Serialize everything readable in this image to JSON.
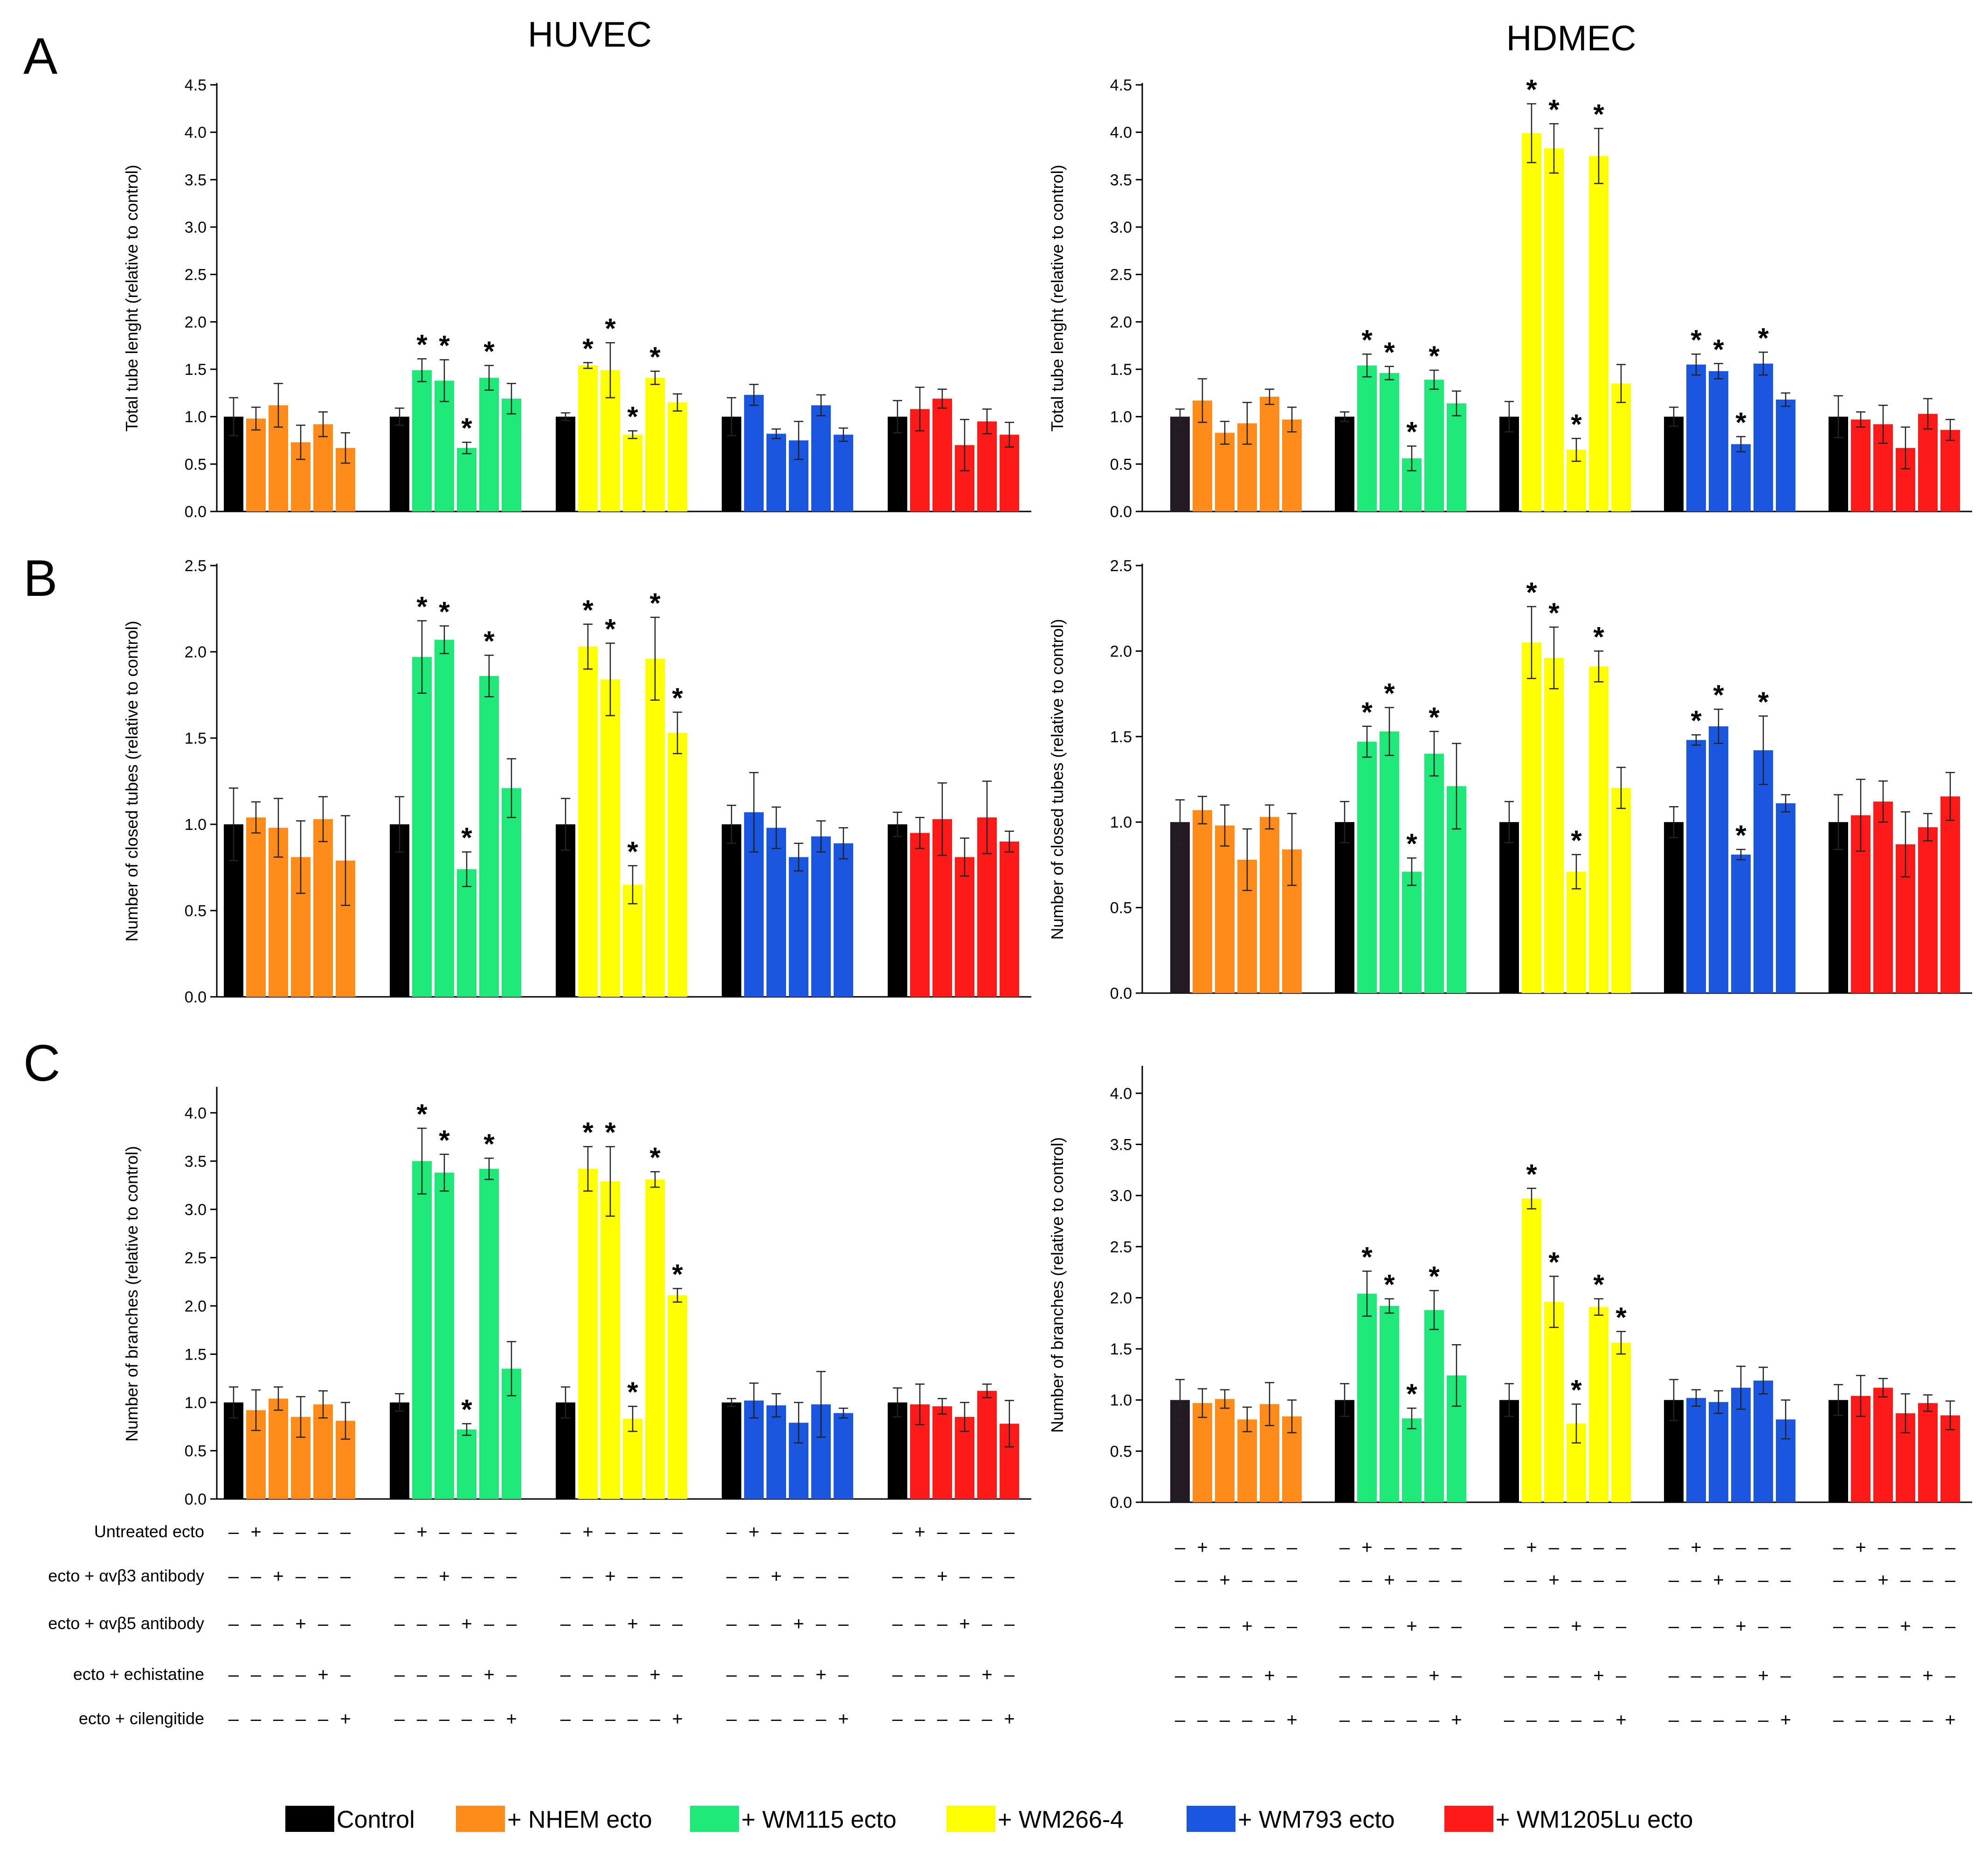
{
  "figure": {
    "column_titles": [
      "HUVEC",
      "HDMEC"
    ],
    "panel_letters": [
      "A",
      "B",
      "C"
    ],
    "condition_rows": [
      "Untreated ecto",
      "ecto + αvβ3 antibody",
      "ecto + αvβ5 antibody",
      "ecto + echistatine",
      "ecto + cilengitide"
    ],
    "legend": [
      {
        "label": "Control",
        "color": "#000000"
      },
      {
        "label": "+ NHEM ecto",
        "color": "#ff8c1a"
      },
      {
        "label": "+ WM115 ecto",
        "color": "#1ee876"
      },
      {
        "label": "+ WM266-4",
        "color": "#ffff00"
      },
      {
        "label": "+ WM793 ecto",
        "color": "#1a56e0"
      },
      {
        "label": "+ WM1205Lu ecto",
        "color": "#ff1a1a"
      }
    ],
    "group_colors": [
      "#ff8c1a",
      "#1ee876",
      "#ffff00",
      "#1a56e0",
      "#ff1a1a"
    ],
    "control_colors": [
      "#000000",
      "#231a23"
    ]
  },
  "chart_data": [
    {
      "panel": "A",
      "column": 0,
      "type": "bar",
      "ylabel": "Total tube lenght (relative to control)",
      "ylim": [
        0,
        4.5
      ],
      "yticks": [
        0.0,
        0.5,
        1.0,
        1.5,
        2.0,
        2.5,
        3.0,
        3.5,
        4.0,
        4.5
      ],
      "groups": [
        {
          "values": [
            1.0,
            0.98,
            1.12,
            0.73,
            0.92,
            0.67
          ],
          "errors": [
            0.2,
            0.12,
            0.23,
            0.18,
            0.13,
            0.16
          ],
          "stars": []
        },
        {
          "values": [
            1.0,
            1.49,
            1.38,
            0.67,
            1.41,
            1.19
          ],
          "errors": [
            0.09,
            0.12,
            0.22,
            0.06,
            0.13,
            0.16
          ],
          "stars": [
            1,
            2,
            3,
            4
          ]
        },
        {
          "values": [
            1.0,
            1.54,
            1.49,
            0.81,
            1.41,
            1.15
          ],
          "errors": [
            0.04,
            0.03,
            0.29,
            0.04,
            0.07,
            0.09
          ],
          "stars": [
            1,
            2,
            3,
            4
          ]
        },
        {
          "values": [
            1.0,
            1.23,
            0.82,
            0.75,
            1.12,
            0.81
          ],
          "errors": [
            0.2,
            0.11,
            0.05,
            0.2,
            0.11,
            0.07
          ],
          "stars": []
        },
        {
          "values": [
            1.0,
            1.08,
            1.19,
            0.7,
            0.95,
            0.81
          ],
          "errors": [
            0.17,
            0.23,
            0.1,
            0.27,
            0.13,
            0.13
          ],
          "stars": []
        }
      ]
    },
    {
      "panel": "A",
      "column": 1,
      "type": "bar",
      "ylabel": "Total tube lenght (relative to control)",
      "ylim": [
        0,
        4.5
      ],
      "yticks": [
        0.0,
        0.5,
        1.0,
        1.5,
        2.0,
        2.5,
        3.0,
        3.5,
        4.0,
        4.5
      ],
      "groups": [
        {
          "values": [
            1.0,
            1.17,
            0.83,
            0.93,
            1.21,
            0.97
          ],
          "errors": [
            0.08,
            0.23,
            0.12,
            0.22,
            0.08,
            0.13
          ],
          "stars": []
        },
        {
          "values": [
            1.0,
            1.54,
            1.46,
            0.56,
            1.39,
            1.14
          ],
          "errors": [
            0.05,
            0.12,
            0.07,
            0.13,
            0.1,
            0.13
          ],
          "stars": [
            1,
            2,
            3,
            4
          ]
        },
        {
          "values": [
            1.0,
            3.99,
            3.83,
            0.65,
            3.75,
            1.35
          ],
          "errors": [
            0.16,
            0.31,
            0.26,
            0.12,
            0.29,
            0.2
          ],
          "stars": [
            1,
            2,
            3,
            4
          ]
        },
        {
          "values": [
            1.0,
            1.55,
            1.48,
            0.71,
            1.56,
            1.18
          ],
          "errors": [
            0.1,
            0.11,
            0.08,
            0.08,
            0.12,
            0.07
          ],
          "stars": [
            1,
            2,
            3,
            4
          ]
        },
        {
          "values": [
            1.0,
            0.97,
            0.92,
            0.67,
            1.03,
            0.86
          ],
          "errors": [
            0.22,
            0.08,
            0.2,
            0.22,
            0.16,
            0.11
          ],
          "stars": []
        }
      ]
    },
    {
      "panel": "B",
      "column": 0,
      "type": "bar",
      "ylabel": "Number of closed tubes (relative to control)",
      "ylim": [
        0,
        2.5
      ],
      "yticks": [
        0.0,
        0.5,
        1.0,
        1.5,
        2.0,
        2.5
      ],
      "groups": [
        {
          "values": [
            1.0,
            1.04,
            0.98,
            0.81,
            1.03,
            0.79
          ],
          "errors": [
            0.21,
            0.09,
            0.17,
            0.21,
            0.13,
            0.26
          ],
          "stars": []
        },
        {
          "values": [
            1.0,
            1.97,
            2.07,
            0.74,
            1.86,
            1.21
          ],
          "errors": [
            0.16,
            0.21,
            0.08,
            0.1,
            0.12,
            0.17
          ],
          "stars": [
            1,
            2,
            3,
            4
          ]
        },
        {
          "values": [
            1.0,
            2.03,
            1.84,
            0.65,
            1.96,
            1.53
          ],
          "errors": [
            0.15,
            0.13,
            0.21,
            0.11,
            0.24,
            0.12
          ],
          "stars": [
            1,
            2,
            3,
            4,
            5
          ]
        },
        {
          "values": [
            1.0,
            1.07,
            0.98,
            0.81,
            0.93,
            0.89
          ],
          "errors": [
            0.11,
            0.23,
            0.12,
            0.08,
            0.09,
            0.09
          ],
          "stars": []
        },
        {
          "values": [
            1.0,
            0.95,
            1.03,
            0.81,
            1.04,
            0.9
          ],
          "errors": [
            0.07,
            0.09,
            0.21,
            0.11,
            0.21,
            0.06
          ],
          "stars": []
        }
      ]
    },
    {
      "panel": "B",
      "column": 1,
      "type": "bar",
      "ylabel": "Number of closed tubes (relative to control)",
      "ylim": [
        0,
        2.5
      ],
      "yticks": [
        0.0,
        0.5,
        1.0,
        1.5,
        2.0,
        2.5
      ],
      "groups": [
        {
          "values": [
            1.0,
            1.07,
            0.98,
            0.78,
            1.03,
            0.84
          ],
          "errors": [
            0.13,
            0.08,
            0.12,
            0.18,
            0.07,
            0.21
          ],
          "stars": []
        },
        {
          "values": [
            1.0,
            1.47,
            1.53,
            0.71,
            1.4,
            1.21
          ],
          "errors": [
            0.12,
            0.09,
            0.14,
            0.08,
            0.13,
            0.25
          ],
          "stars": [
            1,
            2,
            3,
            4
          ]
        },
        {
          "values": [
            1.0,
            2.05,
            1.96,
            0.71,
            1.91,
            1.2
          ],
          "errors": [
            0.12,
            0.21,
            0.18,
            0.1,
            0.09,
            0.12
          ],
          "stars": [
            1,
            2,
            3,
            4
          ]
        },
        {
          "values": [
            1.0,
            1.48,
            1.56,
            0.81,
            1.42,
            1.11
          ],
          "errors": [
            0.09,
            0.03,
            0.1,
            0.03,
            0.2,
            0.05
          ],
          "stars": [
            1,
            2,
            3,
            4
          ]
        },
        {
          "values": [
            1.0,
            1.04,
            1.12,
            0.87,
            0.97,
            1.15
          ],
          "errors": [
            0.16,
            0.21,
            0.12,
            0.19,
            0.08,
            0.14
          ],
          "stars": []
        }
      ]
    },
    {
      "panel": "C",
      "column": 0,
      "type": "bar",
      "ylabel": "Number of branches (relative to control)",
      "ylim": [
        0,
        4.25
      ],
      "yticks": [
        0.0,
        0.5,
        1.0,
        1.5,
        2.0,
        2.5,
        3.0,
        3.5,
        4.0
      ],
      "groups": [
        {
          "values": [
            1.0,
            0.92,
            1.04,
            0.85,
            0.98,
            0.81
          ],
          "errors": [
            0.16,
            0.21,
            0.12,
            0.21,
            0.14,
            0.19
          ],
          "stars": []
        },
        {
          "values": [
            1.0,
            3.5,
            3.38,
            0.72,
            3.42,
            1.35
          ],
          "errors": [
            0.09,
            0.34,
            0.19,
            0.06,
            0.11,
            0.28
          ],
          "stars": [
            1,
            2,
            3,
            4
          ]
        },
        {
          "values": [
            1.0,
            3.42,
            3.29,
            0.83,
            3.31,
            2.11
          ],
          "errors": [
            0.16,
            0.23,
            0.36,
            0.13,
            0.08,
            0.07
          ],
          "stars": [
            1,
            2,
            3,
            4,
            5
          ]
        },
        {
          "values": [
            1.0,
            1.02,
            0.97,
            0.79,
            0.98,
            0.89
          ],
          "errors": [
            0.04,
            0.18,
            0.12,
            0.21,
            0.34,
            0.05
          ],
          "stars": []
        },
        {
          "values": [
            1.0,
            0.98,
            0.96,
            0.85,
            1.12,
            0.78
          ],
          "errors": [
            0.15,
            0.21,
            0.08,
            0.15,
            0.07,
            0.24
          ],
          "stars": []
        }
      ]
    },
    {
      "panel": "C",
      "column": 1,
      "type": "bar",
      "ylabel": "Number of branches (relative to control)",
      "ylim": [
        0,
        4.25
      ],
      "yticks": [
        0.0,
        0.5,
        1.0,
        1.5,
        2.0,
        2.5,
        3.0,
        3.5,
        4.0
      ],
      "groups": [
        {
          "values": [
            1.0,
            0.97,
            1.01,
            0.81,
            0.96,
            0.84
          ],
          "errors": [
            0.2,
            0.14,
            0.09,
            0.12,
            0.21,
            0.16
          ],
          "stars": []
        },
        {
          "values": [
            1.0,
            2.04,
            1.92,
            0.82,
            1.88,
            1.24
          ],
          "errors": [
            0.16,
            0.22,
            0.07,
            0.1,
            0.19,
            0.3
          ],
          "stars": [
            1,
            2,
            3,
            4
          ]
        },
        {
          "values": [
            1.0,
            2.97,
            1.96,
            0.77,
            1.91,
            1.56
          ],
          "errors": [
            0.16,
            0.1,
            0.25,
            0.19,
            0.08,
            0.11
          ],
          "stars": [
            1,
            2,
            3,
            4,
            5
          ]
        },
        {
          "values": [
            1.0,
            1.02,
            0.98,
            1.12,
            1.19,
            0.81
          ],
          "errors": [
            0.2,
            0.08,
            0.11,
            0.21,
            0.13,
            0.19
          ],
          "stars": []
        },
        {
          "values": [
            1.0,
            1.04,
            1.12,
            0.87,
            0.97,
            0.85
          ],
          "errors": [
            0.15,
            0.2,
            0.09,
            0.19,
            0.08,
            0.14
          ],
          "stars": []
        }
      ]
    }
  ]
}
